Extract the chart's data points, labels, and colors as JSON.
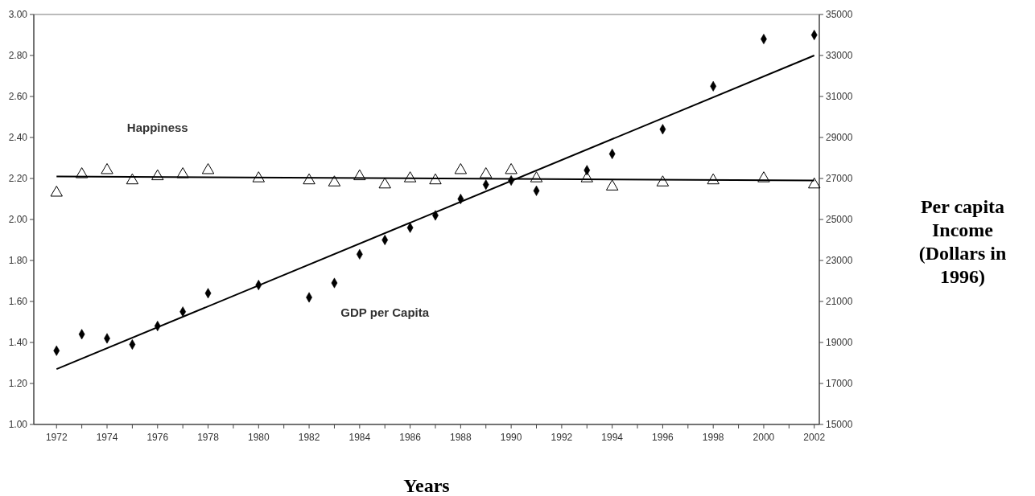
{
  "chart_data": {
    "type": "scatter",
    "xlabel": "Years",
    "y2label": "Per capita Income (Dollars in 1996)",
    "xlim": [
      1971.1,
      2002.2
    ],
    "xticks": [
      1972,
      {
        "value": 1973,
        "label": null
      },
      1974,
      {
        "value": 1975,
        "label": null
      },
      1976,
      {
        "value": 1977,
        "label": null
      },
      1978,
      {
        "value": 1979,
        "label": null
      },
      1980,
      {
        "value": 1981,
        "label": null
      },
      1982,
      {
        "value": 1983,
        "label": null
      },
      1984,
      {
        "value": 1985,
        "label": null
      },
      1986,
      {
        "value": 1987,
        "label": null
      },
      1988,
      {
        "value": 1989,
        "label": null
      },
      1990,
      {
        "value": 1991,
        "label": null
      },
      1992,
      {
        "value": 1993,
        "label": null
      },
      1994,
      {
        "value": 1995,
        "label": null
      },
      1996,
      {
        "value": 1997,
        "label": null
      },
      1998,
      {
        "value": 1999,
        "label": null
      },
      2000,
      {
        "value": 2001,
        "label": null
      },
      2002
    ],
    "ylim": [
      1,
      3
    ],
    "yticks": [
      {
        "value": 1,
        "label": "1.00"
      },
      {
        "value": 1.2,
        "label": "1.20"
      },
      {
        "value": 1.4,
        "label": "1.40"
      },
      {
        "value": 1.6,
        "label": "1.60"
      },
      {
        "value": 1.8,
        "label": "1.80"
      },
      {
        "value": 2,
        "label": "2.00"
      },
      {
        "value": 2.2,
        "label": "2.20"
      },
      {
        "value": 2.4,
        "label": "2.40"
      },
      {
        "value": 2.6,
        "label": "2.60"
      },
      {
        "value": 2.8,
        "label": "2.80"
      },
      {
        "value": 3,
        "label": "3.00"
      }
    ],
    "y2lim": [
      15000,
      35000
    ],
    "y2ticks": [
      15000,
      17000,
      19000,
      21000,
      23000,
      25000,
      27000,
      29000,
      31000,
      33000,
      35000
    ],
    "grid": false,
    "series": [
      {
        "name": "Happiness",
        "marker": "triangle",
        "color": "#000000",
        "x": [
          1972,
          1973,
          1974,
          1975,
          1976,
          1977,
          1978,
          1980,
          1982,
          1983,
          1984,
          1985,
          1986,
          1987,
          1988,
          1989,
          1990,
          1991,
          1993,
          1994,
          1996,
          1998,
          2000,
          2002
        ],
        "values": [
          2.13,
          2.22,
          2.24,
          2.19,
          2.21,
          2.22,
          2.24,
          2.2,
          2.19,
          2.18,
          2.21,
          2.17,
          2.2,
          2.19,
          2.24,
          2.22,
          2.24,
          2.2,
          2.2,
          2.16,
          2.18,
          2.19,
          2.2,
          2.17
        ]
      },
      {
        "type": "line",
        "line_style": "solid",
        "color": "#000000",
        "x": [
          1972,
          2002
        ],
        "values": [
          2.21,
          2.19
        ]
      },
      {
        "name": "GDP per Capita",
        "marker": "diamond",
        "axis": "y2",
        "color": "#000000",
        "x": [
          1972,
          1973,
          1974,
          1975,
          1976,
          1977,
          1978,
          1980,
          1982,
          1983,
          1984,
          1985,
          1986,
          1987,
          1988,
          1989,
          1990,
          1991,
          1993,
          1994,
          1996,
          1998,
          2000,
          2002
        ],
        "values": [
          18600,
          19400,
          19200,
          18900,
          19800,
          20500,
          21400,
          21800,
          21200,
          21900,
          23300,
          24000,
          24600,
          25200,
          26000,
          26700,
          26900,
          26400,
          27400,
          28200,
          29400,
          31500,
          33800,
          34000
        ]
      },
      {
        "type": "line",
        "line_style": "solid",
        "axis": "y2",
        "color": "#000000",
        "x": [
          1972,
          2002
        ],
        "values": [
          17700,
          33000
        ]
      }
    ]
  }
}
